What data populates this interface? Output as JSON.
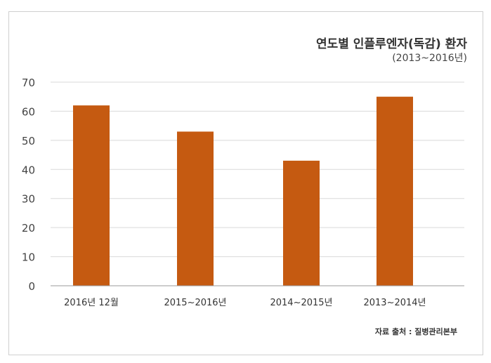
{
  "chart_data": {
    "type": "bar",
    "title": "연도별 인플루엔자(독감) 환자",
    "subtitle": "(2013~2016년)",
    "categories": [
      "2016년 12월",
      "2015~2016년",
      "2014~2015년",
      "2013~2014년"
    ],
    "values": [
      62,
      53,
      43,
      65
    ],
    "ylim": [
      0,
      70
    ],
    "yticks": [
      0,
      10,
      20,
      30,
      40,
      50,
      60,
      70
    ],
    "xlabel": "",
    "ylabel": "",
    "grid": true,
    "legend": "none",
    "bar_color": "#c55a11",
    "source": "자료 출처 : 질병관리본부"
  }
}
